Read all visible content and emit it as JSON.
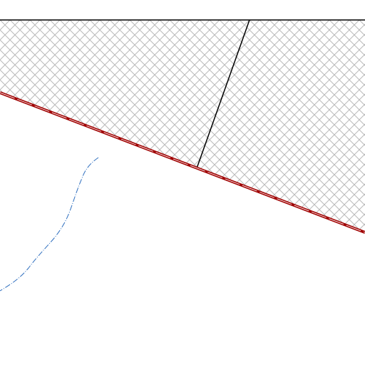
{
  "map": {
    "background_color": "#ffffff",
    "features": {
      "hatched_area": {
        "fill_pattern": "crosshatch",
        "hatch_color": "#b9b9b9"
      },
      "top_border_line": {
        "color": "#000000"
      },
      "divider_line": {
        "color": "#000000"
      },
      "boundary_line": {
        "color": "#a00000",
        "dash_color": "#ffffff"
      },
      "stream_line": {
        "color": "#2f6fbf",
        "style": "dash-dot"
      }
    }
  }
}
